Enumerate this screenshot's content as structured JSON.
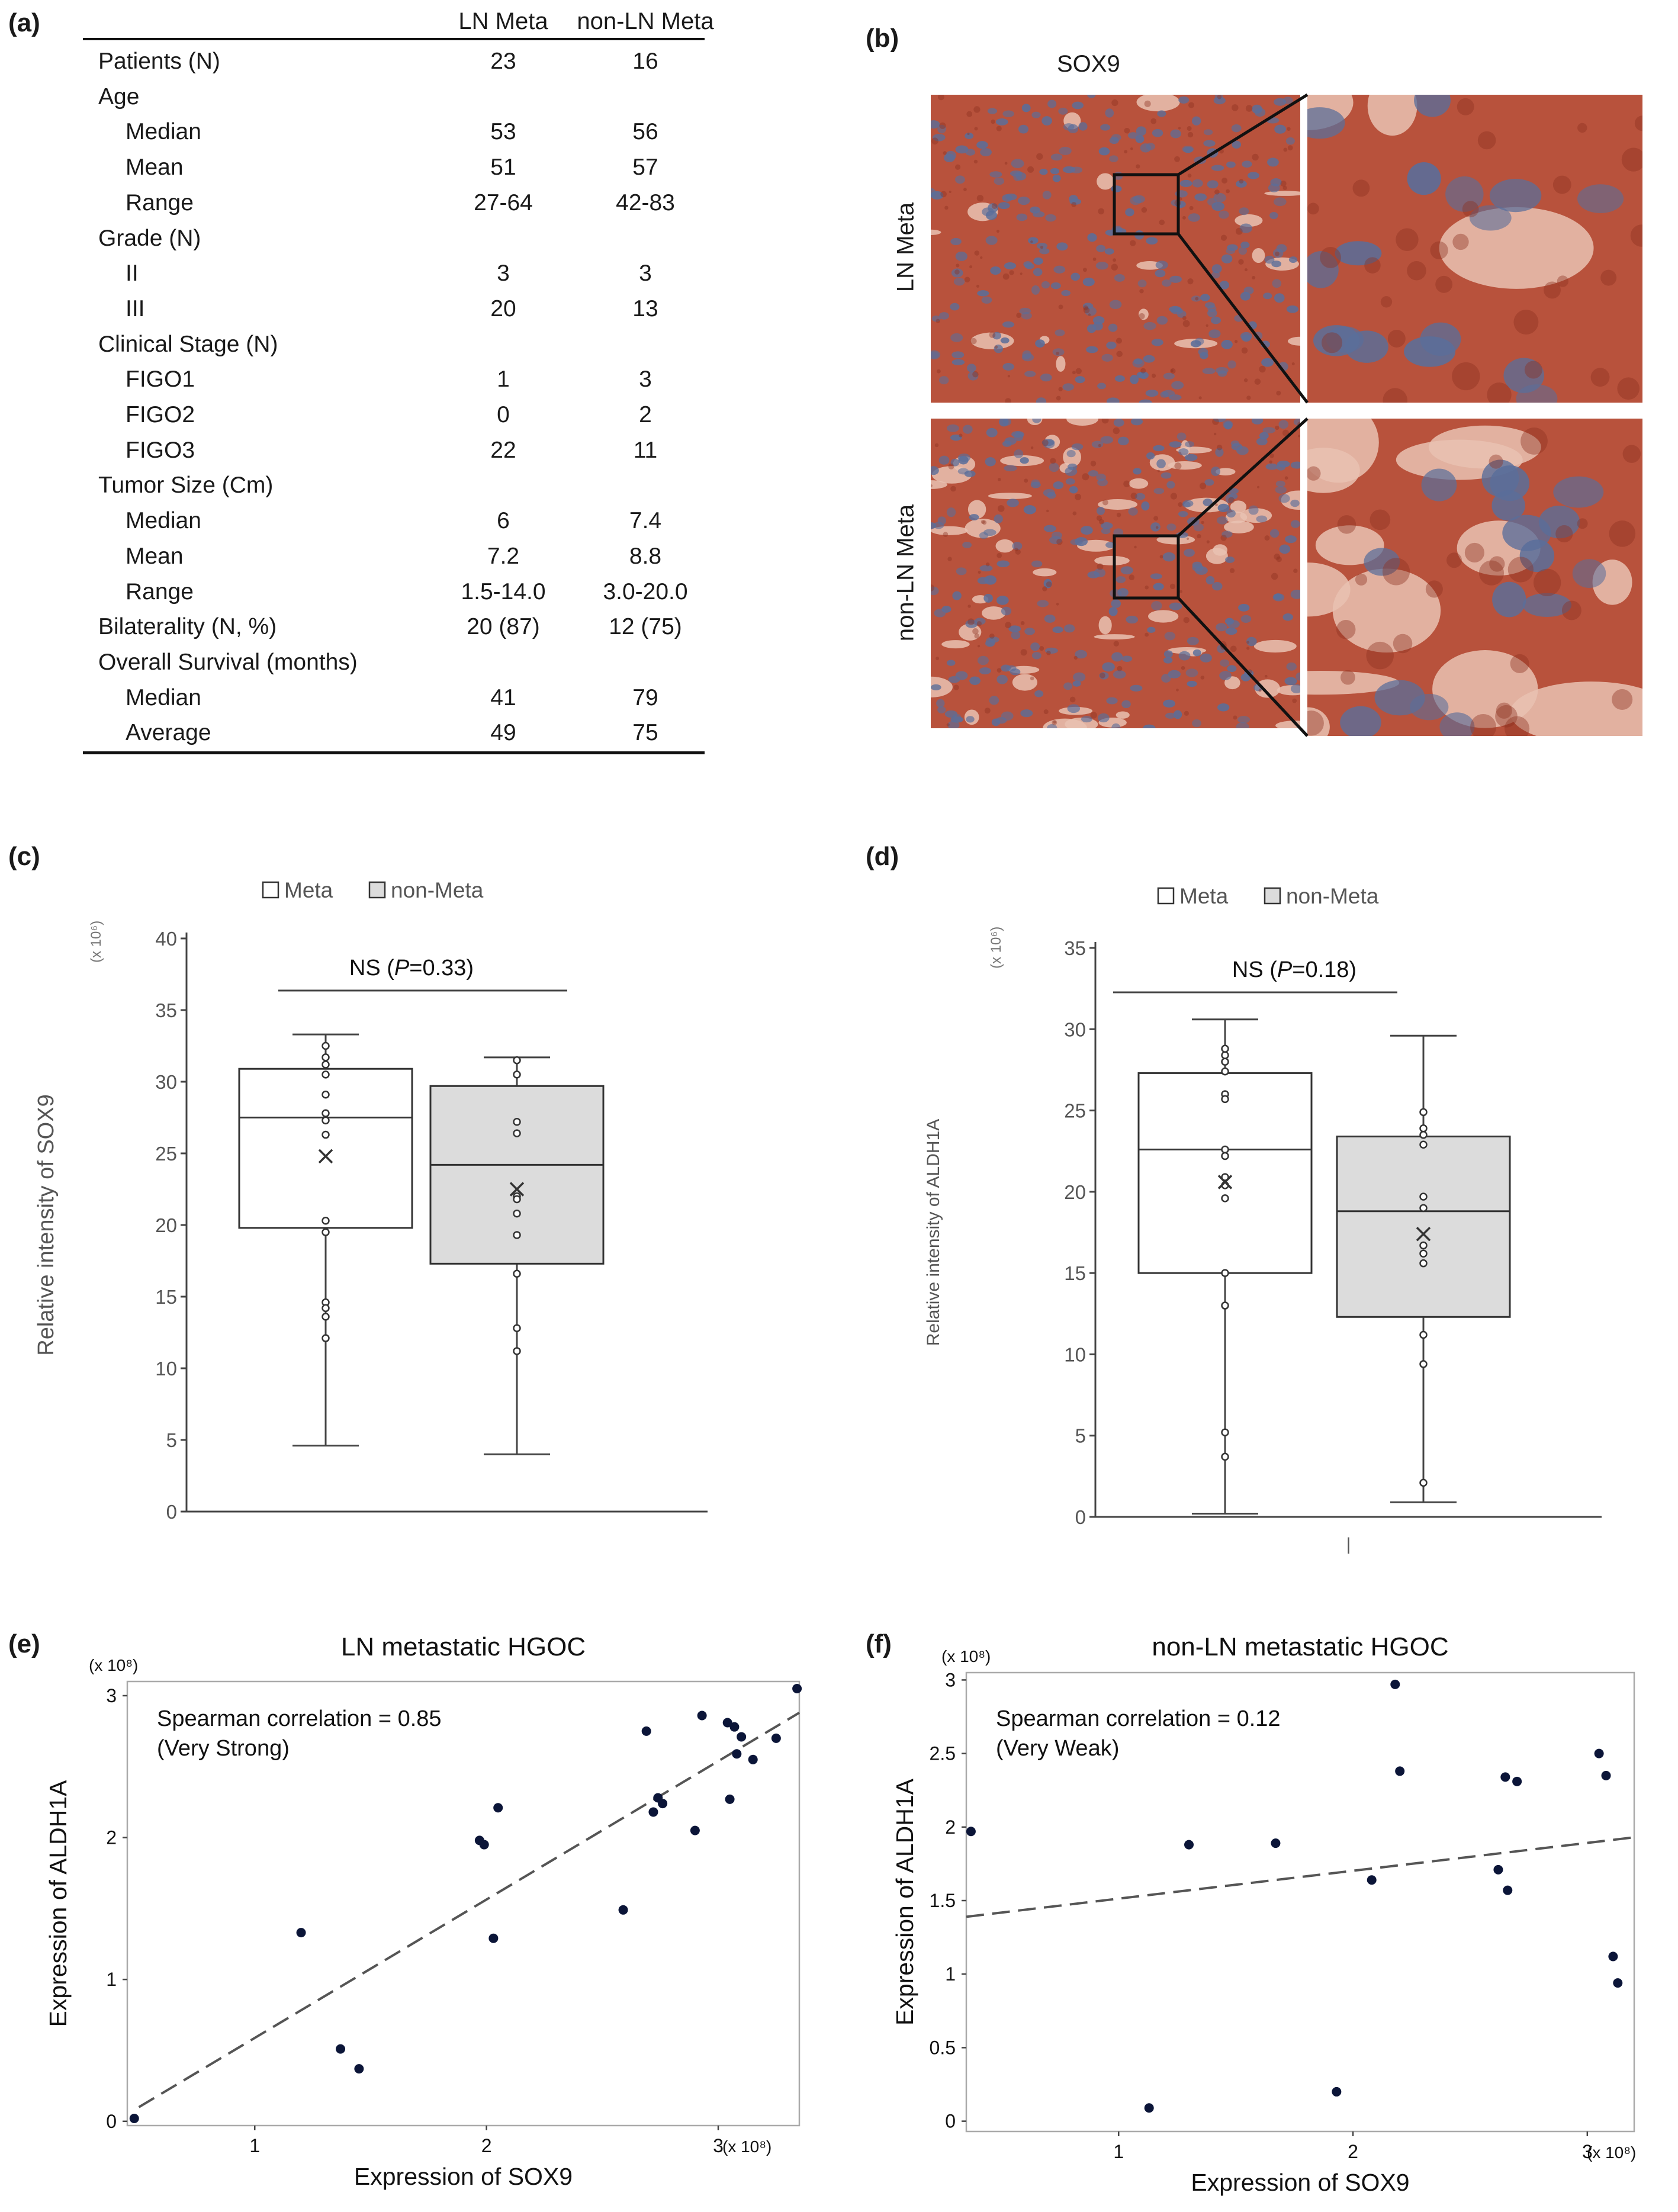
{
  "panel_labels": {
    "a": "(a)",
    "b": "(b)",
    "c": "(c)",
    "d": "(d)",
    "e": "(e)",
    "f": "(f)"
  },
  "table": {
    "headers": [
      "LN Meta",
      "non-LN Meta"
    ],
    "rows": [
      {
        "label": "Patients (N)",
        "v1": "23",
        "v2": "16",
        "sub": false
      },
      {
        "label": "Age",
        "v1": "",
        "v2": "",
        "sub": false
      },
      {
        "label": "Median",
        "v1": "53",
        "v2": "56",
        "sub": true
      },
      {
        "label": "Mean",
        "v1": "51",
        "v2": "57",
        "sub": true
      },
      {
        "label": "Range",
        "v1": "27-64",
        "v2": "42-83",
        "sub": true
      },
      {
        "label": "Grade (N)",
        "v1": "",
        "v2": "",
        "sub": false
      },
      {
        "label": "II",
        "v1": "3",
        "v2": "3",
        "sub": true
      },
      {
        "label": "III",
        "v1": "20",
        "v2": "13",
        "sub": true
      },
      {
        "label": "Clinical Stage (N)",
        "v1": "",
        "v2": "",
        "sub": false
      },
      {
        "label": "FIGO1",
        "v1": "1",
        "v2": "3",
        "sub": true
      },
      {
        "label": "FIGO2",
        "v1": "0",
        "v2": "2",
        "sub": true
      },
      {
        "label": "FIGO3",
        "v1": "22",
        "v2": "11",
        "sub": true
      },
      {
        "label": "Tumor Size (Cm)",
        "v1": "",
        "v2": "",
        "sub": false
      },
      {
        "label": "Median",
        "v1": "6",
        "v2": "7.4",
        "sub": true
      },
      {
        "label": "Mean",
        "v1": "7.2",
        "v2": "8.8",
        "sub": true
      },
      {
        "label": "Range",
        "v1": "1.5-14.0",
        "v2": "3.0-20.0",
        "sub": true
      },
      {
        "label": "Bilaterality (N, %)",
        "v1": "20 (87)",
        "v2": "12 (75)",
        "sub": false
      },
      {
        "label": "Overall Survival (months)",
        "v1": "",
        "v2": "",
        "sub": false
      },
      {
        "label": "Median",
        "v1": "41",
        "v2": "79",
        "sub": true
      },
      {
        "label": "Average",
        "v1": "49",
        "v2": "75",
        "sub": true
      }
    ]
  },
  "micrographs": {
    "stain_title": "SOX9",
    "row_labels": [
      "LN Meta",
      "non-LN Meta"
    ]
  },
  "colors": {
    "tissue": "#b8523c",
    "tissue_light": "#e9c2b2",
    "nuclei": "#5a6e9a",
    "box_grey": "#dcdcdc",
    "dot": "#0b1538",
    "dash": "#555555",
    "axis": "#444444"
  },
  "chart_data": [
    {
      "id": "c",
      "type": "box",
      "legend": [
        "Meta",
        "non-Meta"
      ],
      "annotation": {
        "prefix": "NS (",
        "p": "P",
        "value": "=0.33)"
      },
      "ylabel": "Relative intensity of SOX9",
      "yunit": "(x 10⁶)",
      "ylim": [
        0,
        40
      ],
      "yticks": [
        0,
        5,
        10,
        15,
        20,
        25,
        30,
        35,
        40
      ],
      "groups": [
        {
          "name": "Meta",
          "min": 4.6,
          "q1": 19.8,
          "median": 27.5,
          "q3": 30.9,
          "max": 33.3,
          "mean": 24.8,
          "points": [
            32.5,
            31.7,
            31.2,
            30.5,
            29.1,
            27.8,
            27.3,
            26.3,
            20.3,
            19.5,
            14.6,
            14.2,
            13.6,
            12.1
          ]
        },
        {
          "name": "non-Meta",
          "min": 4.0,
          "q1": 17.3,
          "median": 24.2,
          "q3": 29.7,
          "max": 31.7,
          "mean": 22.5,
          "points": [
            31.5,
            30.5,
            27.2,
            26.4,
            22.0,
            21.8,
            20.8,
            19.3,
            16.6,
            12.8,
            11.2
          ]
        }
      ]
    },
    {
      "id": "d",
      "type": "box",
      "legend": [
        "Meta",
        "non-Meta"
      ],
      "annotation": {
        "prefix": "NS (",
        "p": "P",
        "value": "=0.18)"
      },
      "ylabel": "Relative intensity of ALDH1A",
      "yunit": "(x 10⁶)",
      "ylim": [
        0,
        35
      ],
      "yticks": [
        0,
        5,
        10,
        15,
        20,
        25,
        30,
        35
      ],
      "xtick": "|",
      "groups": [
        {
          "name": "Meta",
          "min": 0.2,
          "q1": 15.0,
          "median": 22.6,
          "q3": 27.3,
          "max": 30.6,
          "mean": 20.6,
          "points": [
            28.8,
            28.4,
            28.0,
            27.4,
            26.0,
            25.7,
            22.6,
            22.2,
            20.9,
            20.4,
            19.6,
            15.0,
            13.0,
            5.2,
            3.7
          ]
        },
        {
          "name": "non-Meta",
          "min": 0.9,
          "q1": 12.3,
          "median": 18.8,
          "q3": 23.4,
          "max": 29.6,
          "mean": 17.4,
          "points": [
            24.9,
            23.9,
            23.5,
            22.9,
            19.7,
            19.0,
            16.7,
            16.2,
            15.6,
            11.2,
            9.4,
            2.1
          ]
        }
      ]
    },
    {
      "id": "e",
      "type": "scatter",
      "title": "LN metastatic HGOC",
      "xlabel": "Expression of SOX9",
      "ylabel": "Expression of ALDH1A",
      "xunit": "(x 10⁸)",
      "yunit": "(x 10⁸)",
      "xlim": [
        0.45,
        3.35
      ],
      "ylim": [
        -0.03,
        3.1
      ],
      "xticks": [
        1,
        2,
        3
      ],
      "yticks": [
        0,
        1,
        2,
        3
      ],
      "annotation": [
        "Spearman correlation = 0.85",
        "(Very Strong)"
      ],
      "trend": {
        "x": [
          0.5,
          3.35
        ],
        "y": [
          0.1,
          2.88
        ]
      },
      "x": [
        0.48,
        1.2,
        1.37,
        1.45,
        1.97,
        1.99,
        2.03,
        2.05,
        2.59,
        2.69,
        2.72,
        2.74,
        2.76,
        2.9,
        2.93,
        3.04,
        3.05,
        3.07,
        3.08,
        3.1,
        3.15,
        3.25,
        3.34
      ],
      "y": [
        0.02,
        1.33,
        0.51,
        0.37,
        1.98,
        1.95,
        1.29,
        2.21,
        1.49,
        2.75,
        2.18,
        2.28,
        2.24,
        2.05,
        2.86,
        2.81,
        2.27,
        2.78,
        2.59,
        2.71,
        2.55,
        2.7,
        3.05
      ]
    },
    {
      "id": "f",
      "type": "scatter",
      "title": "non-LN metastatic HGOC",
      "xlabel": "Expression of SOX9",
      "ylabel": "Expression of ALDH1A",
      "xunit": "(x 10⁸)",
      "yunit": "(x 10⁸)",
      "xlim": [
        0.35,
        3.2
      ],
      "ylim": [
        -0.07,
        3.05
      ],
      "xticks": [
        1,
        2,
        3
      ],
      "yticks": [
        "0",
        "0.5",
        "1",
        "1.5",
        "2",
        "2.5",
        "3"
      ],
      "annotation": [
        "Spearman correlation = 0.12",
        "(Very Weak)"
      ],
      "trend": {
        "x": [
          0.35,
          3.2
        ],
        "y": [
          1.39,
          1.93
        ]
      },
      "x": [
        0.37,
        1.13,
        1.3,
        1.67,
        1.93,
        2.08,
        2.18,
        2.2,
        2.62,
        2.65,
        2.66,
        2.7,
        3.05,
        3.08,
        3.11,
        3.13
      ],
      "y": [
        1.97,
        0.09,
        1.88,
        1.89,
        0.2,
        1.64,
        2.97,
        2.38,
        1.71,
        2.34,
        1.57,
        2.31,
        2.5,
        2.35,
        1.12,
        0.94
      ]
    }
  ]
}
